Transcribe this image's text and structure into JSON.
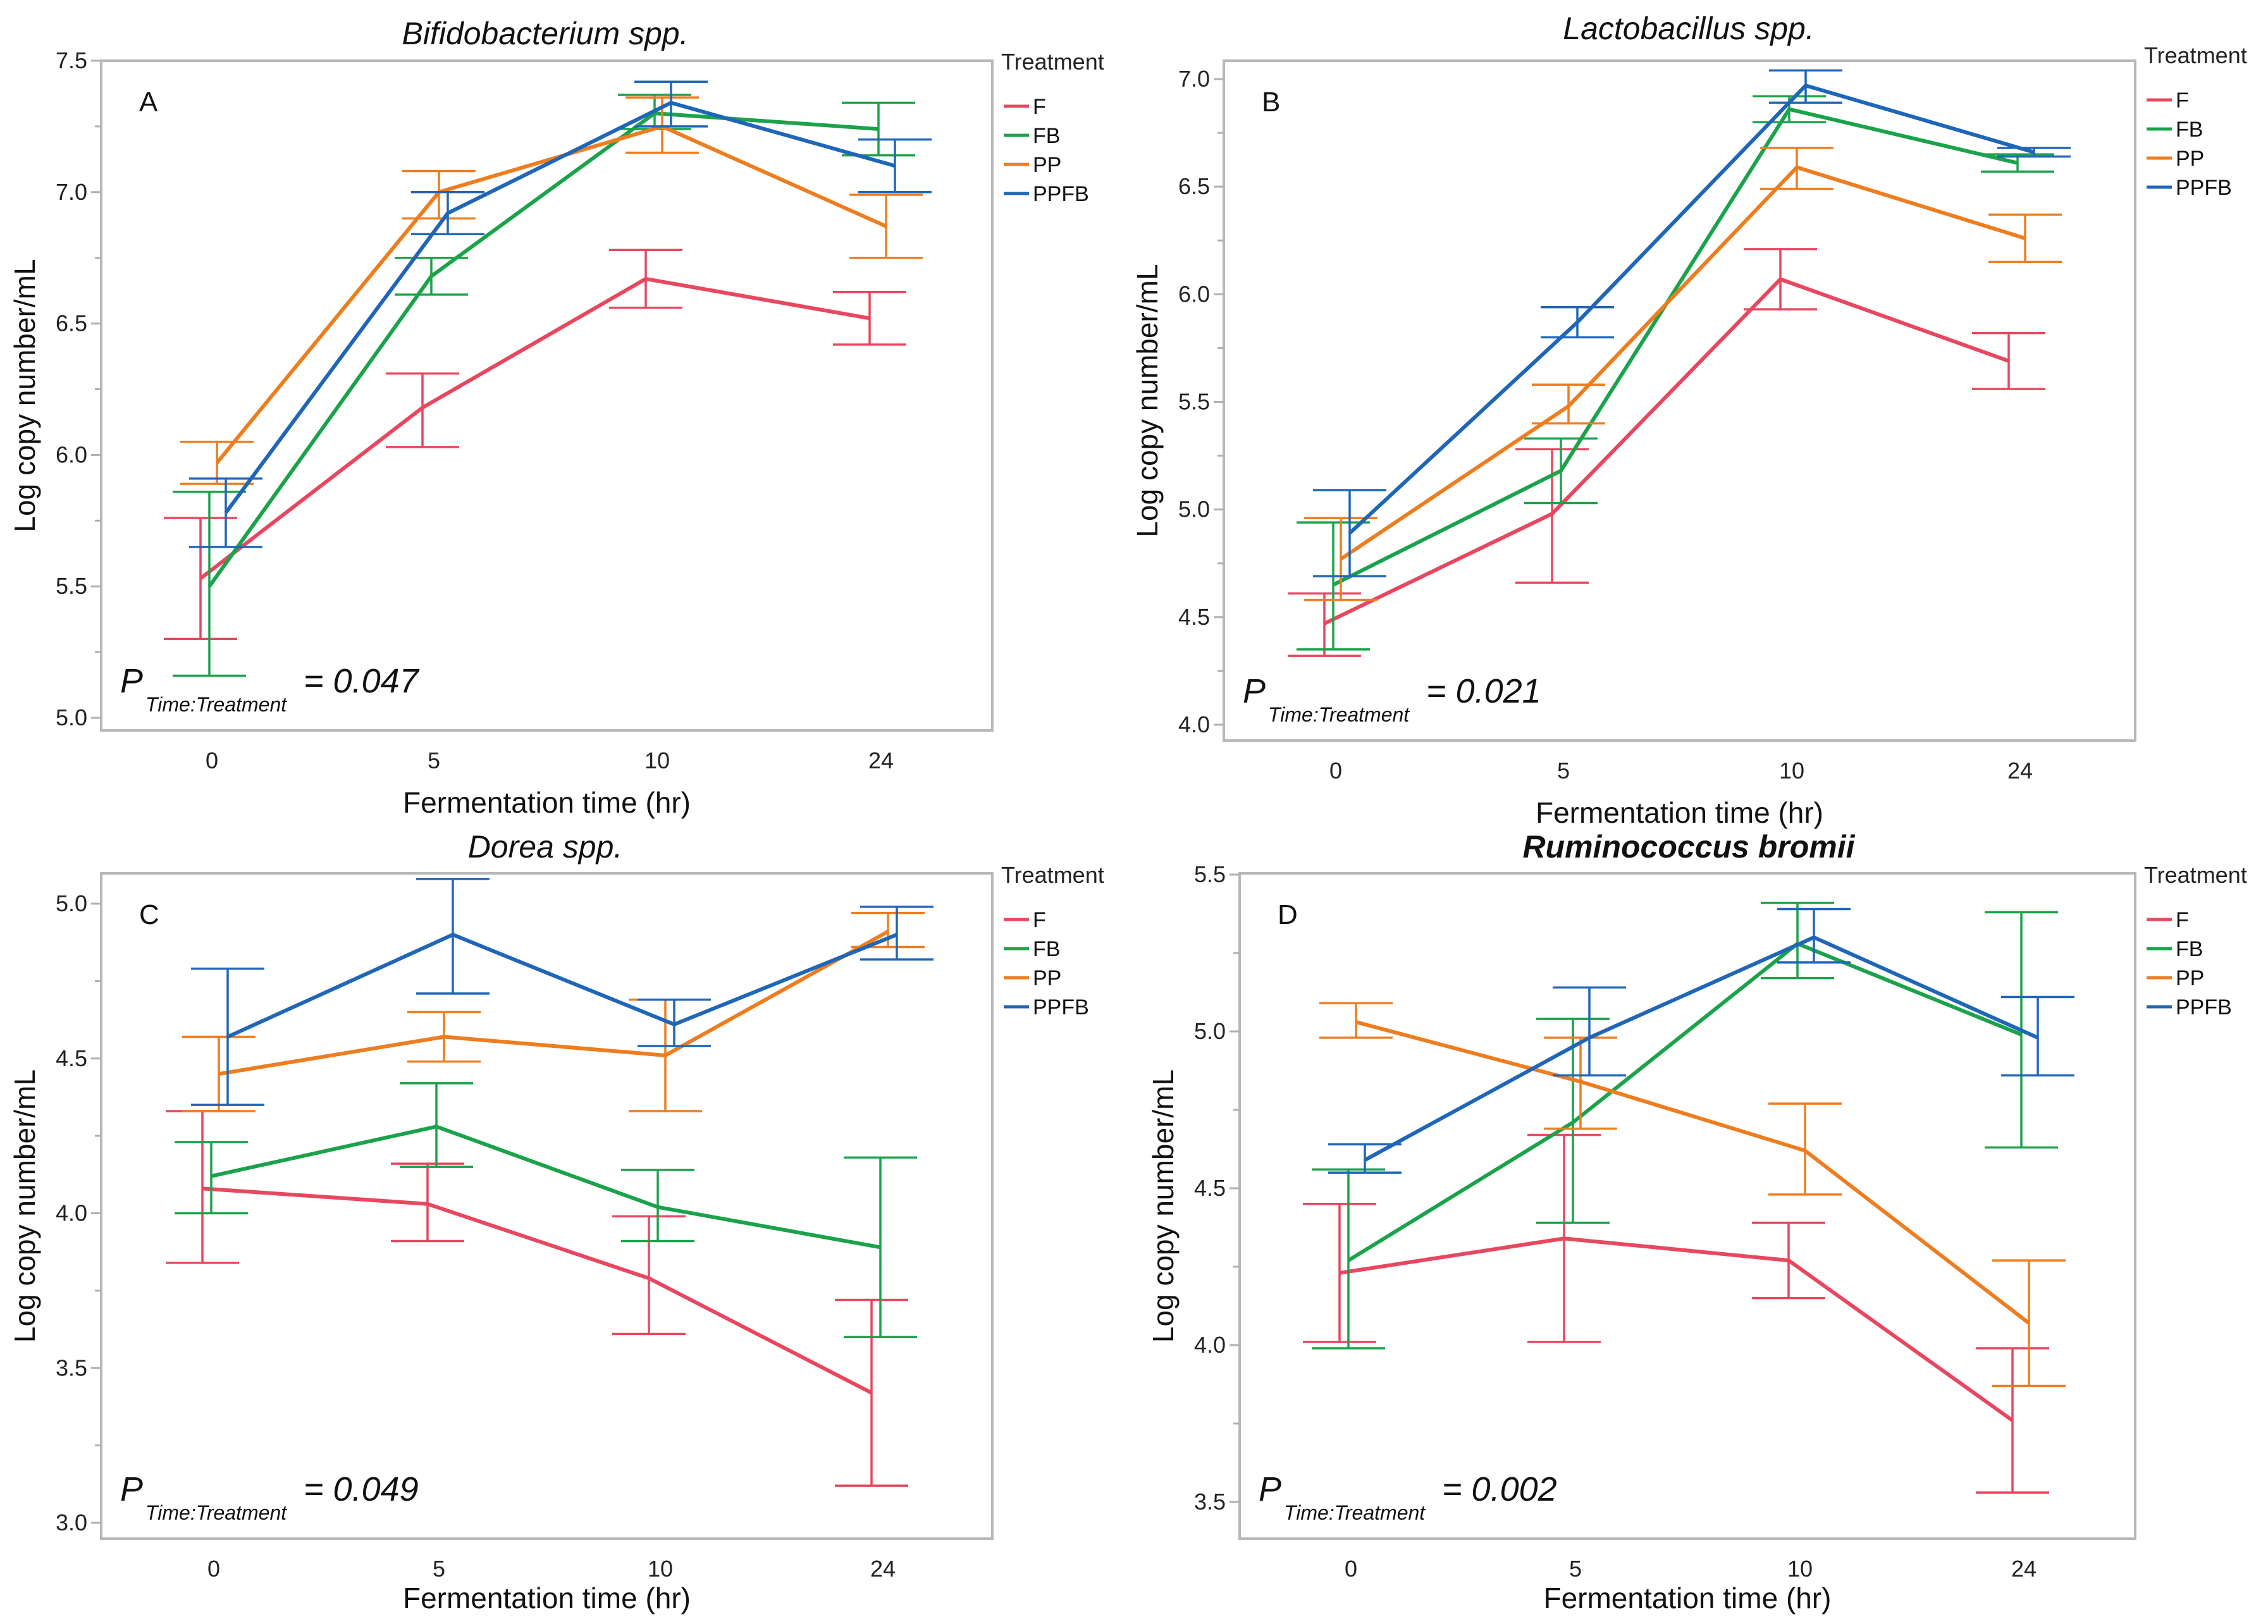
{
  "figure": {
    "legend_title": "Treatment",
    "x_axis_title": "Fermentation time (hr)",
    "y_axis_title": "Log copy number/mL",
    "pvalue_symbol": "P",
    "pvalue_subscript": "Time:Treatment"
  },
  "series_meta": [
    {
      "name": "F",
      "color": "#e8475f"
    },
    {
      "name": "FB",
      "color": "#1aa34a"
    },
    {
      "name": "PP",
      "color": "#ee7d1f"
    },
    {
      "name": "PPFB",
      "color": "#1f66b8"
    }
  ],
  "chart_data": [
    {
      "type": "line",
      "panel": "A",
      "title": "Bifidobacterium spp.",
      "title_bold": false,
      "xlabel": "Fermentation time (hr)",
      "ylabel": "Log copy number/mL",
      "categories": [
        "0",
        "5",
        "10",
        "24"
      ],
      "ylim": [
        5.0,
        7.5
      ],
      "yticks": [
        "5.0",
        "5.5",
        "6.0",
        "6.5",
        "7.0",
        "7.5"
      ],
      "pvalue_text": "= 0.047",
      "legend": "right",
      "series": [
        {
          "name": "F",
          "values": [
            5.53,
            6.18,
            6.67,
            6.52
          ],
          "lower": [
            5.3,
            6.03,
            6.56,
            6.42
          ],
          "upper": [
            5.76,
            6.31,
            6.78,
            6.62
          ]
        },
        {
          "name": "FB",
          "values": [
            5.5,
            6.68,
            7.3,
            7.24
          ],
          "lower": [
            5.16,
            6.61,
            7.24,
            7.14
          ],
          "upper": [
            5.86,
            6.75,
            7.37,
            7.34
          ]
        },
        {
          "name": "PP",
          "values": [
            5.97,
            7.0,
            7.25,
            6.87
          ],
          "lower": [
            5.89,
            6.9,
            7.15,
            6.75
          ],
          "upper": [
            6.05,
            7.08,
            7.36,
            6.99
          ]
        },
        {
          "name": "PPFB",
          "values": [
            5.78,
            6.92,
            7.34,
            7.1
          ],
          "lower": [
            5.65,
            6.84,
            7.25,
            7.0
          ],
          "upper": [
            5.91,
            7.0,
            7.42,
            7.2
          ]
        }
      ]
    },
    {
      "type": "line",
      "panel": "B",
      "title": "Lactobacillus spp.",
      "title_bold": false,
      "xlabel": "Fermentation time (hr)",
      "ylabel": "Log copy number/mL",
      "categories": [
        "0",
        "5",
        "10",
        "24"
      ],
      "ylim": [
        4.0,
        7.0
      ],
      "yticks": [
        "4.0",
        "4.5",
        "5.0",
        "5.5",
        "6.0",
        "6.5",
        "7.0"
      ],
      "pvalue_text": "= 0.021",
      "legend": "right",
      "series": [
        {
          "name": "F",
          "values": [
            4.47,
            4.98,
            6.07,
            5.69
          ],
          "lower": [
            4.32,
            4.66,
            5.93,
            5.56
          ],
          "upper": [
            4.61,
            5.28,
            6.21,
            5.82
          ]
        },
        {
          "name": "FB",
          "values": [
            4.65,
            5.18,
            6.86,
            6.61
          ],
          "lower": [
            4.35,
            5.03,
            6.8,
            6.57
          ],
          "upper": [
            4.94,
            5.33,
            6.92,
            6.65
          ]
        },
        {
          "name": "PP",
          "values": [
            4.77,
            5.48,
            6.59,
            6.26
          ],
          "lower": [
            4.58,
            5.4,
            6.49,
            6.15
          ],
          "upper": [
            4.96,
            5.58,
            6.68,
            6.37
          ]
        },
        {
          "name": "PPFB",
          "values": [
            4.89,
            5.87,
            6.97,
            6.66
          ],
          "lower": [
            4.69,
            5.8,
            6.89,
            6.64
          ],
          "upper": [
            5.09,
            5.94,
            7.04,
            6.68
          ]
        }
      ]
    },
    {
      "type": "line",
      "panel": "C",
      "title": "Dorea spp.",
      "title_bold": false,
      "xlabel": "Fermentation time (hr)",
      "ylabel": "Log copy number/mL",
      "categories": [
        "0",
        "5",
        "10",
        "24"
      ],
      "ylim": [
        3.0,
        5.0
      ],
      "yticks": [
        "3.0",
        "3.5",
        "4.0",
        "4.5",
        "5.0"
      ],
      "pvalue_text": "= 0.049",
      "legend": "right",
      "series": [
        {
          "name": "F",
          "values": [
            4.08,
            4.03,
            3.79,
            3.42
          ],
          "lower": [
            3.84,
            3.91,
            3.61,
            3.12
          ],
          "upper": [
            4.33,
            4.16,
            3.99,
            3.72
          ]
        },
        {
          "name": "FB",
          "values": [
            4.12,
            4.28,
            4.02,
            3.89
          ],
          "lower": [
            4.0,
            4.15,
            3.91,
            3.6
          ],
          "upper": [
            4.23,
            4.42,
            4.14,
            4.18
          ]
        },
        {
          "name": "PP",
          "values": [
            4.45,
            4.57,
            4.51,
            4.91
          ],
          "lower": [
            4.33,
            4.49,
            4.33,
            4.86
          ],
          "upper": [
            4.57,
            4.65,
            4.69,
            4.97
          ]
        },
        {
          "name": "PPFB",
          "values": [
            4.57,
            4.9,
            4.61,
            4.9
          ],
          "lower": [
            4.35,
            4.71,
            4.54,
            4.82
          ],
          "upper": [
            4.79,
            5.08,
            4.69,
            4.99
          ]
        }
      ]
    },
    {
      "type": "line",
      "panel": "D",
      "title": "Ruminococcus bromii",
      "title_bold": true,
      "xlabel": "Fermentation time (hr)",
      "ylabel": "Log copy number/mL",
      "categories": [
        "0",
        "5",
        "10",
        "24"
      ],
      "ylim": [
        3.5,
        5.5
      ],
      "yticks": [
        "3.5",
        "4.0",
        "4.5",
        "5.0",
        "5.5"
      ],
      "pvalue_text": "= 0.002",
      "legend": "right",
      "series": [
        {
          "name": "F",
          "values": [
            4.23,
            4.34,
            4.27,
            3.76
          ],
          "lower": [
            4.01,
            4.01,
            4.15,
            3.53
          ],
          "upper": [
            4.45,
            4.67,
            4.39,
            3.99
          ]
        },
        {
          "name": "FB",
          "values": [
            4.27,
            4.71,
            5.28,
            4.99
          ],
          "lower": [
            3.99,
            4.39,
            5.17,
            4.63
          ],
          "upper": [
            4.56,
            5.04,
            5.41,
            5.38
          ]
        },
        {
          "name": "PP",
          "values": [
            5.03,
            4.84,
            4.62,
            4.07
          ],
          "lower": [
            4.98,
            4.69,
            4.48,
            3.87
          ],
          "upper": [
            5.09,
            4.98,
            4.77,
            4.27
          ]
        },
        {
          "name": "PPFB",
          "values": [
            4.59,
            4.98,
            5.3,
            4.98
          ],
          "lower": [
            4.55,
            4.86,
            5.22,
            4.86
          ],
          "upper": [
            4.64,
            5.14,
            5.39,
            5.11
          ]
        }
      ]
    }
  ]
}
